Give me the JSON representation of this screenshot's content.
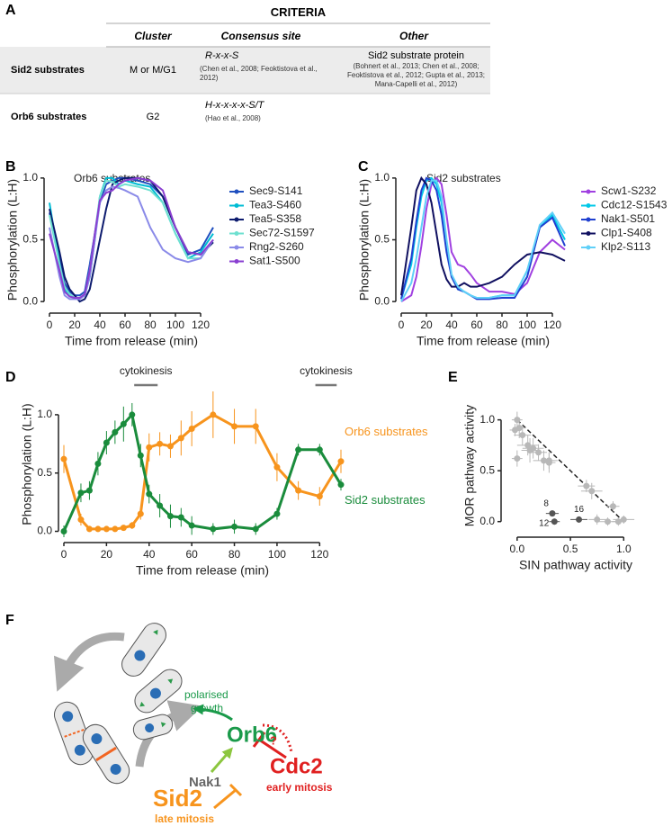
{
  "panel_labels": [
    "A",
    "B",
    "C",
    "D",
    "E",
    "F"
  ],
  "table": {
    "title": "CRITERIA",
    "columns": [
      "Cluster",
      "Consensus site",
      "Other"
    ],
    "rows": [
      {
        "name": "Sid2 substrates",
        "cluster": "M or M/G1",
        "site": "R-x-x-S",
        "site_refs": "(Chen et al., 2008; Feoktistova et al., 2012)",
        "other": "Sid2 substrate protein",
        "other_refs": "(Bohnert et al., 2013; Chen et al., 2008; Feoktistova et al., 2012; Gupta et al., 2013; Mana-Capelli et al., 2012)"
      },
      {
        "name": "Orb6 substrates",
        "cluster": "G2",
        "site": "H-x-x-x-x-S/T",
        "site_refs": "(Hao et al., 2008)"
      }
    ]
  },
  "chart_data": [
    {
      "type": "line",
      "title": "Orb6 substrates",
      "x_label": "Time from release (min)",
      "y_label": "Phosphorylation (L:H)",
      "x": [
        0,
        8,
        12,
        16,
        20,
        24,
        28,
        32,
        36,
        40,
        45,
        50,
        55,
        60,
        70,
        80,
        90,
        100,
        110,
        120,
        130
      ],
      "xlim": [
        0,
        130
      ],
      "xticks": [
        0,
        20,
        40,
        60,
        80,
        100,
        120
      ],
      "ylim": [
        -0.05,
        1.05
      ],
      "yticks": [
        {
          "value": 0,
          "label": "0.0"
        },
        {
          "value": 0.5,
          "label": "0.5"
        },
        {
          "value": 1,
          "label": "1.0"
        }
      ],
      "legend": "right",
      "series": [
        {
          "name": "Sec9-S141",
          "color": "#1f4fbf",
          "values": [
            0.72,
            0.35,
            0.15,
            0.08,
            0.05,
            0.05,
            0.08,
            0.3,
            0.55,
            0.8,
            0.95,
            0.98,
            1.0,
            1.0,
            0.98,
            0.95,
            0.85,
            0.6,
            0.38,
            0.42,
            0.6
          ]
        },
        {
          "name": "Tea3-S460",
          "color": "#00bcd4",
          "values": [
            0.8,
            0.3,
            0.1,
            0.05,
            0.03,
            0.03,
            0.05,
            0.2,
            0.5,
            0.85,
            1.0,
            1.0,
            0.95,
            0.98,
            0.95,
            0.93,
            0.8,
            0.55,
            0.35,
            0.4,
            0.55
          ]
        },
        {
          "name": "Tea5-S358",
          "color": "#0d1b6e",
          "values": [
            0.75,
            0.4,
            0.2,
            0.1,
            0.05,
            0.0,
            0.02,
            0.1,
            0.3,
            0.5,
            0.75,
            0.95,
            0.98,
            1.0,
            1.0,
            0.98,
            0.85,
            0.6,
            0.4,
            0.38,
            0.48
          ]
        },
        {
          "name": "Sec72-S1597",
          "color": "#6ee0d0",
          "values": [
            0.7,
            0.3,
            0.12,
            0.06,
            0.03,
            0.03,
            0.05,
            0.25,
            0.55,
            0.85,
            0.98,
            0.97,
            0.93,
            0.95,
            0.93,
            0.9,
            0.8,
            0.55,
            0.35,
            0.35,
            0.5
          ]
        },
        {
          "name": "Rng2-S260",
          "color": "#8a8ae8",
          "values": [
            0.6,
            0.2,
            0.05,
            0.02,
            0.02,
            0.02,
            0.05,
            0.2,
            0.5,
            0.8,
            0.9,
            0.93,
            0.92,
            0.9,
            0.85,
            0.6,
            0.42,
            0.35,
            0.32,
            0.35,
            0.5
          ]
        },
        {
          "name": "Sat1-S500",
          "color": "#8a3fd1",
          "values": [
            0.55,
            0.25,
            0.08,
            0.04,
            0.03,
            0.03,
            0.06,
            0.25,
            0.55,
            0.82,
            0.88,
            0.9,
            0.95,
            0.98,
            1.0,
            0.98,
            0.9,
            0.6,
            0.4,
            0.38,
            0.5
          ]
        }
      ]
    },
    {
      "type": "line",
      "title": "Sid2 substrates",
      "x_label": "Time from release (min)",
      "y_label": "Phosphorylation (L:H)",
      "x": [
        0,
        8,
        12,
        16,
        20,
        24,
        28,
        32,
        36,
        40,
        45,
        50,
        55,
        60,
        70,
        80,
        90,
        100,
        110,
        120,
        130
      ],
      "xlim": [
        0,
        130
      ],
      "xticks": [
        0,
        20,
        40,
        60,
        80,
        100,
        120
      ],
      "ylim": [
        -0.05,
        1.05
      ],
      "yticks": [
        {
          "value": 0,
          "label": "0.0"
        },
        {
          "value": 0.5,
          "label": "0.5"
        },
        {
          "value": 1,
          "label": "1.0"
        }
      ],
      "legend": "right",
      "series": [
        {
          "name": "Scw1-S232",
          "color": "#a040e0",
          "values": [
            0.0,
            0.05,
            0.2,
            0.45,
            0.75,
            0.95,
            1.0,
            0.95,
            0.7,
            0.4,
            0.3,
            0.28,
            0.22,
            0.15,
            0.08,
            0.08,
            0.06,
            0.15,
            0.4,
            0.5,
            0.42
          ]
        },
        {
          "name": "Cdc12-S1543",
          "color": "#00c8e8",
          "values": [
            0.02,
            0.3,
            0.6,
            0.85,
            0.98,
            1.0,
            0.95,
            0.8,
            0.45,
            0.2,
            0.1,
            0.08,
            0.05,
            0.03,
            0.03,
            0.05,
            0.05,
            0.25,
            0.6,
            0.7,
            0.5
          ]
        },
        {
          "name": "Nak1-S501",
          "color": "#2040d0",
          "values": [
            0.02,
            0.35,
            0.65,
            0.9,
            1.0,
            0.98,
            0.9,
            0.7,
            0.4,
            0.2,
            0.1,
            0.08,
            0.05,
            0.02,
            0.02,
            0.03,
            0.03,
            0.2,
            0.6,
            0.68,
            0.45
          ]
        },
        {
          "name": "Clp1-S408",
          "color": "#101060",
          "values": [
            0.05,
            0.6,
            0.9,
            1.0,
            0.95,
            0.8,
            0.55,
            0.3,
            0.18,
            0.12,
            0.12,
            0.15,
            0.12,
            0.12,
            0.15,
            0.2,
            0.3,
            0.38,
            0.4,
            0.38,
            0.33
          ]
        },
        {
          "name": "Klp2-S113",
          "color": "#60d0f8",
          "values": [
            0.0,
            0.15,
            0.35,
            0.6,
            0.85,
            0.98,
            0.98,
            0.85,
            0.5,
            0.22,
            0.12,
            0.08,
            0.05,
            0.03,
            0.03,
            0.05,
            0.05,
            0.25,
            0.62,
            0.72,
            0.55
          ]
        }
      ]
    },
    {
      "type": "line",
      "x_label": "Time from release (min)",
      "y_label": "Phosphorylation (L:H)",
      "x": [
        0,
        8,
        12,
        16,
        20,
        24,
        28,
        32,
        36,
        40,
        45,
        50,
        55,
        60,
        70,
        80,
        90,
        100,
        110,
        120,
        130
      ],
      "xlim": [
        0,
        130
      ],
      "xticks": [
        0,
        20,
        40,
        60,
        80,
        100,
        120
      ],
      "ylim": [
        -0.05,
        1.2
      ],
      "yticks": [
        {
          "value": 0,
          "label": "0.0"
        },
        {
          "value": 0.5,
          "label": "0.5"
        },
        {
          "value": 1,
          "label": "1.0"
        }
      ],
      "legend": "inline",
      "markers": true,
      "annotations": [
        {
          "label": "cytokinesis",
          "start": 33,
          "end": 44
        },
        {
          "label": "cytokinesis",
          "start": 118,
          "end": 128
        }
      ],
      "series": [
        {
          "name": "Orb6 substrates",
          "color": "#f7941d",
          "values": [
            0.62,
            0.1,
            0.02,
            0.02,
            0.02,
            0.02,
            0.03,
            0.05,
            0.15,
            0.72,
            0.75,
            0.73,
            0.8,
            0.88,
            1.0,
            0.9,
            0.9,
            0.55,
            0.35,
            0.3,
            0.6
          ],
          "errors": [
            0.12,
            0.05,
            0.02,
            0.02,
            0.02,
            0.02,
            0.02,
            0.03,
            0.05,
            0.12,
            0.1,
            0.1,
            0.15,
            0.15,
            0.2,
            0.15,
            0.15,
            0.12,
            0.08,
            0.08,
            0.1
          ]
        },
        {
          "name": "Sid2 substrates",
          "color": "#1a8c3c",
          "values": [
            0.0,
            0.33,
            0.35,
            0.58,
            0.76,
            0.85,
            0.92,
            1.0,
            0.65,
            0.32,
            0.22,
            0.13,
            0.12,
            0.05,
            0.02,
            0.04,
            0.02,
            0.15,
            0.7,
            0.7,
            0.4
          ],
          "errors": [
            0.05,
            0.08,
            0.08,
            0.1,
            0.1,
            0.1,
            0.15,
            0.1,
            0.1,
            0.08,
            0.1,
            0.1,
            0.08,
            0.08,
            0.05,
            0.06,
            0.05,
            0.05,
            0.05,
            0.05,
            0.05
          ]
        }
      ]
    },
    {
      "type": "scatter",
      "x_label": "SIN pathway activity",
      "y_label": "MOR pathway activity",
      "xlim": [
        -0.1,
        1.2
      ],
      "xticks": [
        {
          "value": 0,
          "label": "0.0"
        },
        {
          "value": 0.5,
          "label": "0.5"
        },
        {
          "value": 1,
          "label": "1.0"
        }
      ],
      "ylim": [
        -0.1,
        1.2
      ],
      "yticks": [
        {
          "value": 0,
          "label": "0.0"
        },
        {
          "value": 0.5,
          "label": "0.5"
        },
        {
          "value": 1,
          "label": "1.0"
        }
      ],
      "fit": {
        "x": [
          0,
          1
        ],
        "y": [
          1,
          0
        ]
      },
      "series": [
        {
          "color": "#b8b8b8",
          "x": [
            0.0,
            0.02,
            -0.02,
            0.05,
            0.0,
            0.1,
            0.12,
            0.15,
            0.2,
            0.25,
            0.3,
            0.3,
            0.65,
            0.7,
            0.9,
            0.75,
            0.85,
            1.0,
            0.95
          ],
          "values": [
            1.0,
            0.92,
            0.9,
            0.85,
            0.62,
            0.75,
            0.7,
            0.72,
            0.68,
            0.6,
            0.6,
            0.58,
            0.35,
            0.3,
            0.15,
            0.02,
            0.0,
            0.02,
            0.0
          ],
          "xerr": [
            0.05,
            0.06,
            0.05,
            0.08,
            0.05,
            0.1,
            0.08,
            0.1,
            0.08,
            0.1,
            0.08,
            0.06,
            0.08,
            0.1,
            0.06,
            0.08,
            0.1,
            0.1,
            0.06
          ],
          "yerr": [
            0.08,
            0.1,
            0.06,
            0.1,
            0.08,
            0.1,
            0.12,
            0.1,
            0.08,
            0.1,
            0.08,
            0.1,
            0.06,
            0.08,
            0.05,
            0.05,
            0.04,
            0.04,
            0.04
          ]
        },
        {
          "color": "#555555",
          "x": [
            0.33,
            0.35,
            0.58
          ],
          "values": [
            0.08,
            0.0,
            0.02
          ],
          "xerr": [
            0.06,
            0.05,
            0.08
          ],
          "yerr": [
            0.03,
            0.03,
            0.03
          ],
          "point_labels": [
            "8",
            "12",
            "16"
          ]
        }
      ]
    }
  ],
  "diagram": {
    "growth_label": [
      "polarised",
      "growth"
    ],
    "orb6": "Orb6",
    "question": "?",
    "cdc2": "Cdc2",
    "cdc2_phase": "early mitosis",
    "nak1": "Nak1",
    "sid2": "Sid2",
    "sid2_phase": "late mitosis"
  }
}
